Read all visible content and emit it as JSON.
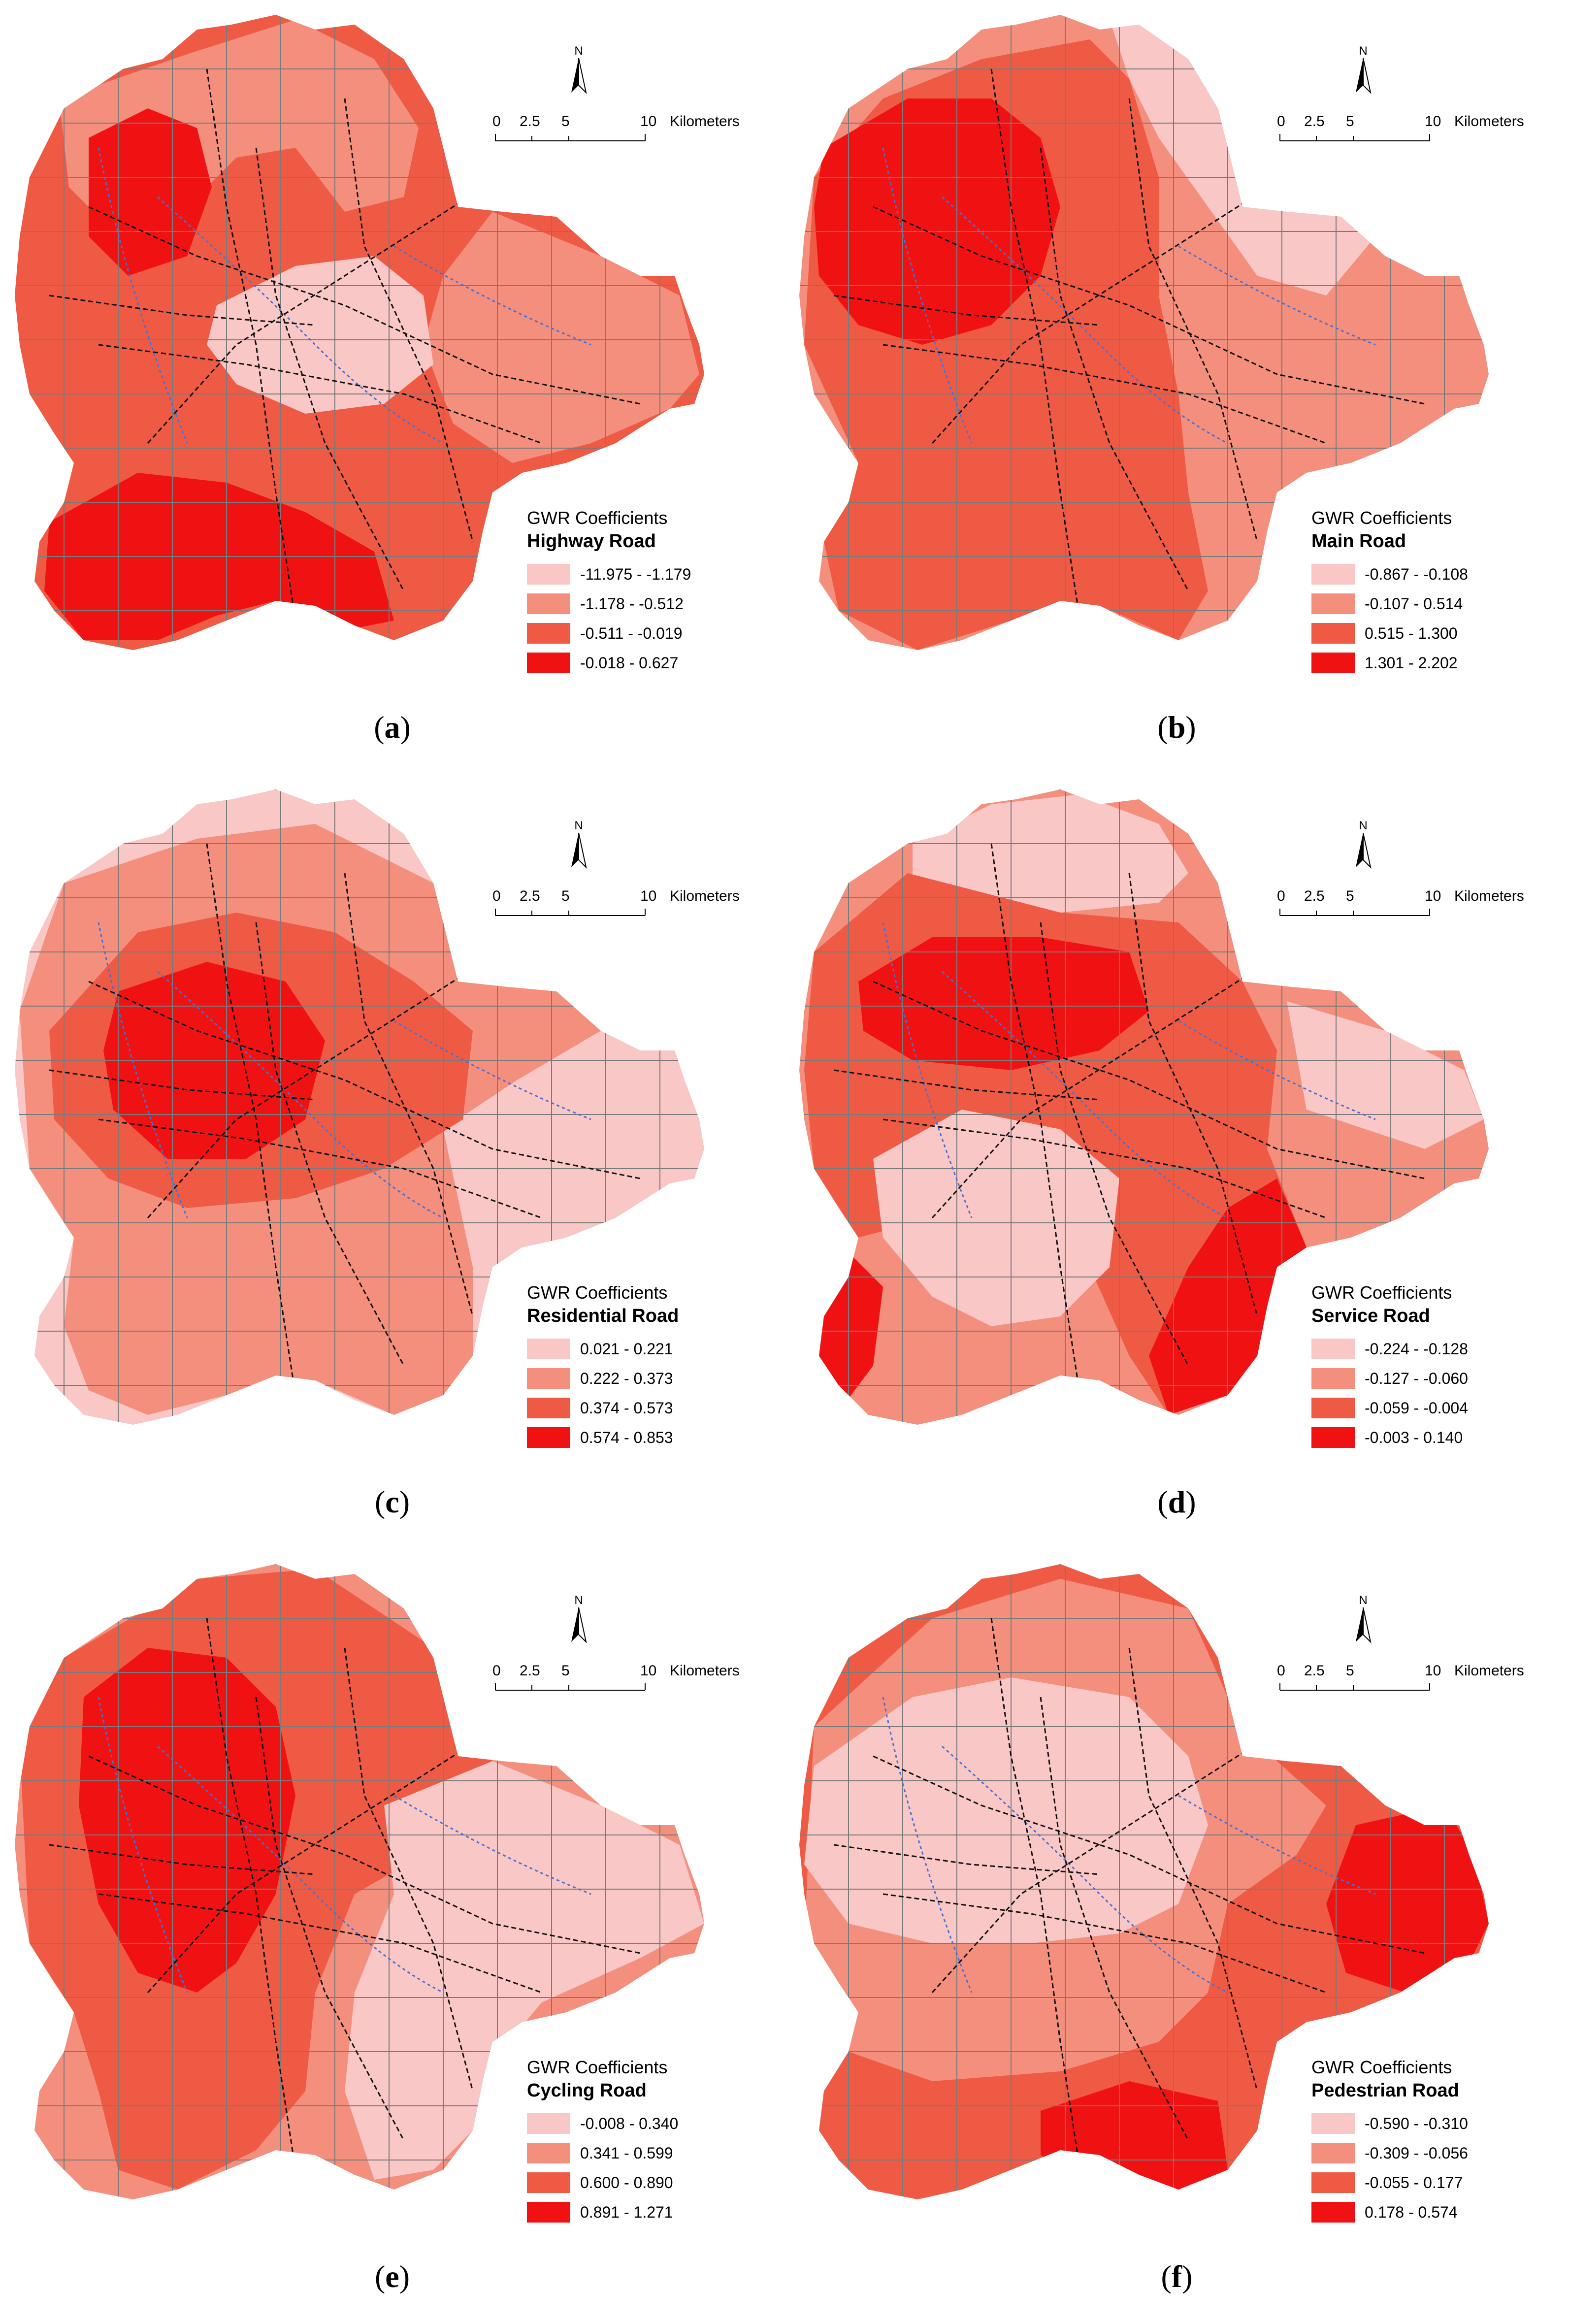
{
  "colors": {
    "class1": "#f9c7c5",
    "class2": "#f48f7e",
    "class3": "#ef5a45",
    "class4": "#f01212",
    "grid": "#7a7a7a",
    "road": "#111111",
    "water": "#4a6fd1"
  },
  "north_label": "N",
  "scale": {
    "t0": "0",
    "t1": "2.5",
    "t2": "5",
    "t3": "10",
    "unit": "Kilometers"
  },
  "legend_title": "GWR Coefficients",
  "panels": [
    {
      "letter": "a",
      "road_type": "Highway Road",
      "classes": [
        "-11.975 - -1.179",
        "-1.178 - -0.512",
        "-0.511 - -0.019",
        "-0.018 - 0.627"
      ]
    },
    {
      "letter": "b",
      "road_type": "Main Road",
      "classes": [
        "-0.867 - -0.108",
        "-0.107 - 0.514",
        "0.515 - 1.300",
        "1.301 - 2.202"
      ]
    },
    {
      "letter": "c",
      "road_type": "Residential Road",
      "classes": [
        "0.021 - 0.221",
        "0.222 - 0.373",
        "0.374 - 0.573",
        "0.574 - 0.853"
      ]
    },
    {
      "letter": "d",
      "road_type": "Service Road",
      "classes": [
        "-0.224 - -0.128",
        "-0.127 - -0.060",
        "-0.059 - -0.004",
        "-0.003 - 0.140"
      ]
    },
    {
      "letter": "e",
      "road_type": "Cycling Road",
      "classes": [
        "-0.008 - 0.340",
        "0.341 - 0.599",
        "0.600 - 0.890",
        "0.891 - 1.271"
      ]
    },
    {
      "letter": "f",
      "road_type": "Pedestrian Road",
      "classes": [
        "-0.590 - -0.310",
        "-0.309 - -0.056",
        "-0.055 - 0.177",
        "0.178 - 0.574"
      ]
    }
  ]
}
